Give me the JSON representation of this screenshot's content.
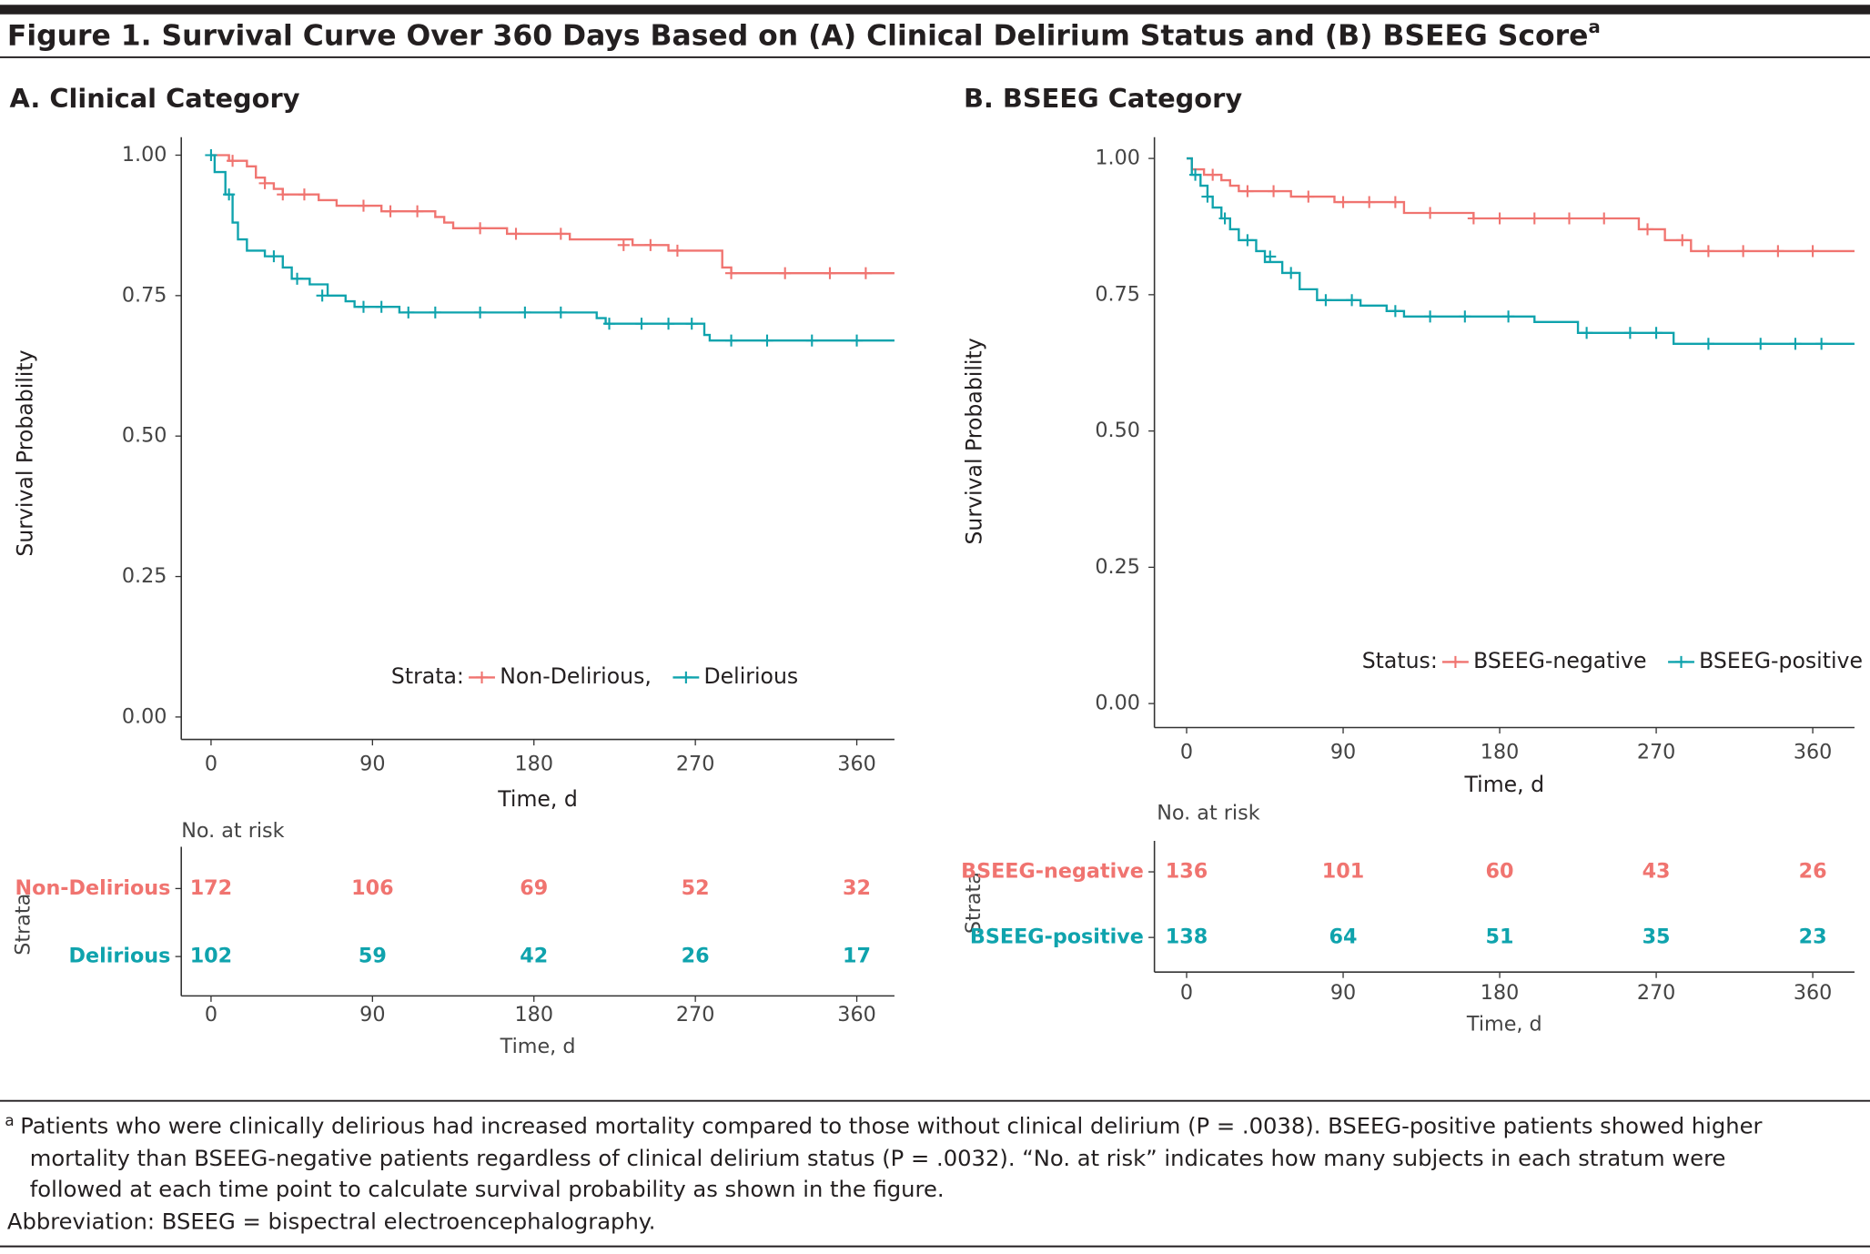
{
  "title": "Figure 1. Survival Curve Over 360 Days Based on (A) Clinical Delirium Status and (B) BSEEG Score",
  "title_marker": "a",
  "footnote": {
    "marker": "a",
    "lines": [
      "Patients who were clinically delirious had increased mortality compared to those without clinical delirium (P = .0038). BSEEG-positive patients showed higher",
      "mortality than BSEEG-negative patients regardless of clinical delirium status (P = .0032). “No. at risk” indicates how many subjects in each stratum were",
      "followed at each time point to calculate survival probability as shown in the figure."
    ],
    "abbreviation": "Abbreviation: BSEEG = bispectral electroencephalography."
  },
  "chart_data": [
    {
      "type": "step",
      "title": "A. Clinical Category",
      "xlabel": "Time, d",
      "ylabel": "Survival Probability",
      "xlim": [
        -16.6,
        381
      ],
      "ylim": [
        -0.04,
        1.032
      ],
      "xticks": [
        0,
        90,
        180,
        270,
        360
      ],
      "yticks": [
        {
          "value": 0,
          "label": "0.00"
        },
        {
          "value": 0.25,
          "label": "0.25"
        },
        {
          "value": 0.5,
          "label": "0.50"
        },
        {
          "value": 0.75,
          "label": "0.75"
        },
        {
          "value": 1,
          "label": "1.00"
        }
      ],
      "legend": {
        "title": "Strata:",
        "labels": [
          "Non-Delirious,",
          "Delirious"
        ]
      },
      "series": [
        {
          "name": "Non-Delirious",
          "color": "#f07470",
          "x": [
            0,
            10,
            20,
            25,
            30,
            35,
            40,
            55,
            60,
            70,
            85,
            95,
            120,
            125,
            130,
            135,
            160,
            165,
            200,
            235,
            255,
            275,
            285,
            290,
            381
          ],
          "values": [
            1,
            0.99,
            0.98,
            0.96,
            0.95,
            0.94,
            0.93,
            0.93,
            0.92,
            0.91,
            0.91,
            0.9,
            0.9,
            0.89,
            0.88,
            0.87,
            0.87,
            0.86,
            0.85,
            0.84,
            0.83,
            0.83,
            0.8,
            0.79,
            0.79
          ],
          "censor_x": [
            12,
            30,
            40,
            52,
            85,
            100,
            115,
            150,
            170,
            195,
            230,
            245,
            260,
            290,
            320,
            345,
            365
          ],
          "censor_values": [
            0.99,
            0.95,
            0.93,
            0.93,
            0.91,
            0.9,
            0.9,
            0.87,
            0.86,
            0.86,
            0.84,
            0.84,
            0.83,
            0.79,
            0.79,
            0.79,
            0.79
          ]
        },
        {
          "name": "Delirious",
          "color": "#0fa3ad",
          "x": [
            0,
            2,
            8,
            12,
            15,
            20,
            30,
            40,
            45,
            55,
            65,
            75,
            80,
            105,
            215,
            220,
            275,
            278,
            381
          ],
          "values": [
            1,
            0.97,
            0.93,
            0.88,
            0.85,
            0.83,
            0.82,
            0.8,
            0.78,
            0.77,
            0.75,
            0.74,
            0.73,
            0.72,
            0.71,
            0.7,
            0.68,
            0.67,
            0.67
          ],
          "censor_x": [
            0,
            10,
            35,
            48,
            62,
            85,
            95,
            110,
            125,
            150,
            175,
            195,
            222,
            240,
            255,
            268,
            290,
            310,
            335,
            360
          ],
          "censor_values": [
            1,
            0.93,
            0.82,
            0.78,
            0.75,
            0.73,
            0.73,
            0.72,
            0.72,
            0.72,
            0.72,
            0.72,
            0.7,
            0.7,
            0.7,
            0.7,
            0.67,
            0.67,
            0.67,
            0.67
          ]
        }
      ],
      "risk_table": {
        "title": "No. at risk",
        "ylabel": "Strata",
        "xlabel": "Time, d",
        "xticks": [
          0,
          90,
          180,
          270,
          360
        ],
        "rows": [
          {
            "name": "Non-Delirious",
            "color": "#f07470",
            "values": [
              172,
              106,
              69,
              52,
              32
            ]
          },
          {
            "name": "Delirious",
            "color": "#0fa3ad",
            "values": [
              102,
              59,
              42,
              26,
              17
            ]
          }
        ]
      }
    },
    {
      "type": "step",
      "title": "B. BSEEG Category",
      "xlabel": "Time, d",
      "ylabel": "Survival Probability",
      "xlim": [
        -18.5,
        384
      ],
      "ylim": [
        -0.044,
        1.039
      ],
      "xticks": [
        0,
        90,
        180,
        270,
        360
      ],
      "yticks": [
        {
          "value": 0,
          "label": "0.00"
        },
        {
          "value": 0.25,
          "label": "0.25"
        },
        {
          "value": 0.5,
          "label": "0.50"
        },
        {
          "value": 0.75,
          "label": "0.75"
        },
        {
          "value": 1,
          "label": "1.00"
        }
      ],
      "legend": {
        "title": "Status:",
        "labels": [
          "BSEEG-negative",
          "BSEEG-positive"
        ]
      },
      "series": [
        {
          "name": "BSEEG-negative",
          "color": "#f07470",
          "x": [
            0,
            3,
            10,
            20,
            25,
            30,
            60,
            85,
            125,
            165,
            260,
            275,
            290,
            384
          ],
          "values": [
            1,
            0.98,
            0.97,
            0.96,
            0.95,
            0.94,
            0.93,
            0.92,
            0.9,
            0.89,
            0.87,
            0.85,
            0.83,
            0.83
          ],
          "censor_x": [
            15,
            35,
            50,
            70,
            90,
            105,
            120,
            140,
            165,
            180,
            200,
            220,
            240,
            265,
            285,
            300,
            320,
            340,
            360
          ],
          "censor_values": [
            0.97,
            0.94,
            0.94,
            0.93,
            0.92,
            0.92,
            0.92,
            0.9,
            0.89,
            0.89,
            0.89,
            0.89,
            0.89,
            0.87,
            0.85,
            0.83,
            0.83,
            0.83,
            0.83
          ]
        },
        {
          "name": "BSEEG-positive",
          "color": "#0fa3ad",
          "x": [
            0,
            3,
            8,
            12,
            15,
            20,
            25,
            30,
            40,
            45,
            55,
            65,
            75,
            100,
            115,
            125,
            200,
            225,
            280,
            384
          ],
          "values": [
            1,
            0.97,
            0.95,
            0.93,
            0.91,
            0.89,
            0.87,
            0.85,
            0.83,
            0.81,
            0.79,
            0.76,
            0.74,
            0.73,
            0.72,
            0.71,
            0.7,
            0.68,
            0.66,
            0.66
          ],
          "censor_x": [
            5,
            12,
            22,
            35,
            48,
            60,
            80,
            95,
            120,
            140,
            160,
            185,
            230,
            255,
            270,
            300,
            330,
            350,
            365
          ],
          "censor_values": [
            0.97,
            0.93,
            0.89,
            0.85,
            0.82,
            0.79,
            0.74,
            0.74,
            0.72,
            0.71,
            0.71,
            0.71,
            0.68,
            0.68,
            0.68,
            0.66,
            0.66,
            0.66,
            0.66
          ]
        }
      ],
      "risk_table": {
        "title": "No. at risk",
        "ylabel": "Strata",
        "xlabel": "Time, d",
        "xticks": [
          0,
          90,
          180,
          270,
          360
        ],
        "rows": [
          {
            "name": "BSEEG-negative",
            "color": "#f07470",
            "values": [
              136,
              101,
              60,
              43,
              26
            ]
          },
          {
            "name": "BSEEG-positive",
            "color": "#0fa3ad",
            "values": [
              138,
              64,
              51,
              35,
              23
            ]
          }
        ]
      }
    }
  ]
}
